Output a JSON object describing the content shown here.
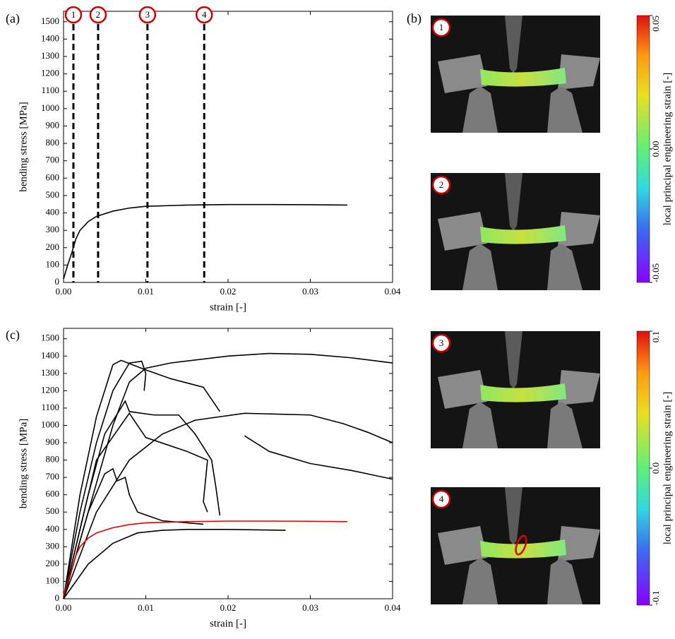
{
  "panel_labels": [
    "(a)",
    "(b)",
    "(c)"
  ],
  "chart_data": [
    {
      "type": "line",
      "xlabel": "strain [-]",
      "ylabel": "bending stress [MPa]",
      "xlim": [
        0,
        0.04
      ],
      "ylim": [
        0,
        1560
      ],
      "xticks": [
        {
          "value": 0,
          "label": "0.00"
        },
        0.01,
        0.02,
        0.03,
        0.04
      ],
      "yticks": [
        0,
        100,
        200,
        300,
        400,
        500,
        600,
        700,
        800,
        900,
        1000,
        1100,
        1200,
        1300,
        1400,
        1500
      ],
      "markers": [
        {
          "x": 0.0012,
          "label": "1"
        },
        {
          "x": 0.0042,
          "label": "2"
        },
        {
          "x": 0.0102,
          "label": "3"
        },
        {
          "x": 0.0171,
          "label": "4"
        }
      ],
      "series": [
        {
          "color": "#000000",
          "x": [
            0,
            0.0005,
            0.001,
            0.0015,
            0.002,
            0.003,
            0.004,
            0.006,
            0.008,
            0.01,
            0.015,
            0.02,
            0.025,
            0.03,
            0.0345
          ],
          "values": [
            20,
            100,
            170,
            250,
            300,
            350,
            380,
            410,
            428,
            438,
            445,
            448,
            448,
            447,
            445
          ]
        }
      ]
    },
    {
      "type": "line",
      "xlabel": "strain [-]",
      "ylabel": "bending stress [MPa]",
      "xlim": [
        0,
        0.04
      ],
      "ylim": [
        0,
        1560
      ],
      "xticks": [
        {
          "value": 0,
          "label": "0.00"
        },
        0.01,
        0.02,
        0.03,
        0.04
      ],
      "yticks": [
        0,
        100,
        200,
        300,
        400,
        500,
        600,
        700,
        800,
        900,
        1000,
        1100,
        1200,
        1300,
        1400,
        1500
      ],
      "series": [
        {
          "color": "#000000",
          "x": [
            0,
            0.002,
            0.004,
            0.006,
            0.008,
            0.0095,
            0.01,
            0.0098
          ],
          "values": [
            0,
            500,
            900,
            1200,
            1360,
            1370,
            1300,
            1200
          ]
        },
        {
          "color": "#000000",
          "x": [
            0,
            0.003,
            0.006,
            0.008,
            0.01,
            0.013,
            0.02,
            0.025,
            0.03,
            0.035,
            0.04
          ],
          "values": [
            0,
            500,
            1000,
            1250,
            1330,
            1360,
            1400,
            1415,
            1410,
            1390,
            1360
          ]
        },
        {
          "color": "#000000",
          "x": [
            0,
            0.002,
            0.004,
            0.006,
            0.007,
            0.01,
            0.013,
            0.017,
            0.019
          ],
          "values": [
            0,
            600,
            1050,
            1350,
            1375,
            1320,
            1270,
            1220,
            1080
          ]
        },
        {
          "color": "#000000",
          "x": [
            0,
            0.003,
            0.005,
            0.0075,
            0.008,
            0.011,
            0.014,
            0.016,
            0.018,
            0.0185,
            0.019
          ],
          "values": [
            0,
            600,
            950,
            1140,
            1080,
            1060,
            1060,
            950,
            800,
            650,
            480
          ]
        },
        {
          "color": "#000000",
          "x": [
            0,
            0.004,
            0.008,
            0.01,
            0.015,
            0.0175,
            0.017,
            0.0175
          ],
          "values": [
            0,
            800,
            1070,
            930,
            850,
            800,
            560,
            500
          ]
        },
        {
          "color": "#000000",
          "x": [
            0,
            0.003,
            0.005,
            0.006,
            0.0065,
            0.0075,
            0.008,
            0.009,
            0.012,
            0.017
          ],
          "values": [
            0,
            500,
            720,
            750,
            680,
            700,
            600,
            500,
            450,
            430
          ]
        },
        {
          "color": "#000000",
          "x": [
            0,
            0.004,
            0.008,
            0.012,
            0.016,
            0.022,
            0.03,
            0.034,
            0.037,
            0.04
          ],
          "values": [
            0,
            500,
            800,
            950,
            1030,
            1070,
            1060,
            1010,
            960,
            900
          ]
        },
        {
          "color": "#000000",
          "x": [
            0.022,
            0.025,
            0.03,
            0.035,
            0.04
          ],
          "values": [
            940,
            850,
            780,
            740,
            690
          ]
        },
        {
          "color": "#000000",
          "x": [
            0,
            0.003,
            0.006,
            0.009,
            0.012,
            0.015,
            0.02,
            0.027
          ],
          "values": [
            0,
            200,
            320,
            380,
            395,
            400,
            400,
            395
          ]
        },
        {
          "color": "#e00000",
          "x": [
            0,
            0.0005,
            0.001,
            0.0015,
            0.002,
            0.003,
            0.004,
            0.006,
            0.008,
            0.01,
            0.015,
            0.02,
            0.025,
            0.03,
            0.0345
          ],
          "values": [
            20,
            100,
            170,
            250,
            300,
            350,
            380,
            410,
            428,
            438,
            445,
            448,
            448,
            447,
            445
          ]
        }
      ]
    }
  ],
  "images": [
    {
      "label": "1"
    },
    {
      "label": "2"
    },
    {
      "label": "3"
    },
    {
      "label": "4"
    }
  ],
  "colorbars": [
    {
      "label": "local principal engineering strain [-]",
      "lim": [
        -0.05,
        0.05
      ],
      "ticks": [
        0.05,
        {
          "value": 0,
          "label": "0.00"
        },
        -0.05
      ]
    },
    {
      "label": "local principal engineering strain [-]",
      "lim": [
        -0.1,
        0.1
      ],
      "ticks": [
        0.1,
        {
          "value": 0,
          "label": "0.0"
        },
        -0.1
      ]
    }
  ]
}
